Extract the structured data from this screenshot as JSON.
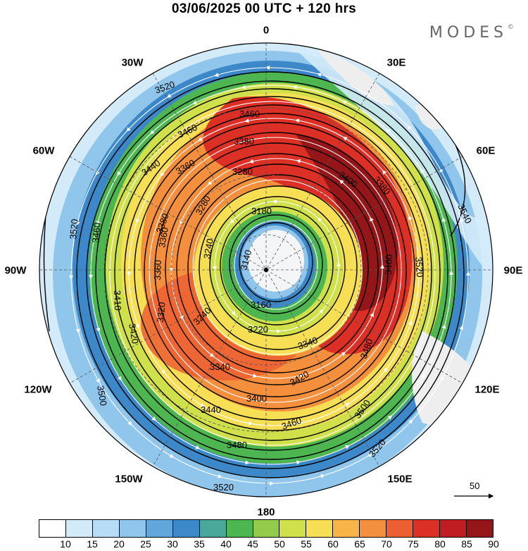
{
  "title": "03/06/2025  00 UTC  + 120 hrs",
  "brand": "MODES",
  "brand_mark": "©",
  "longitudes": {
    "n0": "0",
    "n30e": "30E",
    "n60e": "60E",
    "n90e": "90E",
    "n120e": "120E",
    "n150e": "150E",
    "n180": "180",
    "n150w": "150W",
    "n120w": "120W",
    "n90w": "90W",
    "n60w": "60W",
    "n30w": "30W"
  },
  "contour_labels": [
    "3520",
    "3460",
    "3380",
    "3460",
    "3440",
    "3360",
    "3280",
    "3180",
    "3140",
    "3160",
    "3220",
    "3240",
    "3340",
    "3400",
    "3440",
    "3480",
    "3520",
    "3500",
    "3420",
    "3410",
    "3460",
    "3520",
    "3380",
    "3360",
    "3540",
    "3520",
    "3460",
    "3480",
    "3500",
    "3520",
    "3420",
    "3320",
    "3240",
    "3340",
    "3400",
    "3460",
    "3280",
    "3380",
    "3360"
  ],
  "legend": {
    "values": [
      "10",
      "15",
      "20",
      "25",
      "30",
      "35",
      "40",
      "45",
      "50",
      "55",
      "60",
      "65",
      "70",
      "75",
      "80",
      "85",
      "90"
    ],
    "colors": [
      "#ffffff",
      "#d3ebf9",
      "#b6ddf5",
      "#90c6ec",
      "#62a7dc",
      "#3d88c8",
      "#49a89a",
      "#4db651",
      "#92cc4a",
      "#cfe04a",
      "#f6de55",
      "#f7b447",
      "#f48f3d",
      "#ec5f32",
      "#dc2f25",
      "#bf1d22",
      "#951619"
    ]
  },
  "reference_vector": {
    "label": "50"
  }
}
